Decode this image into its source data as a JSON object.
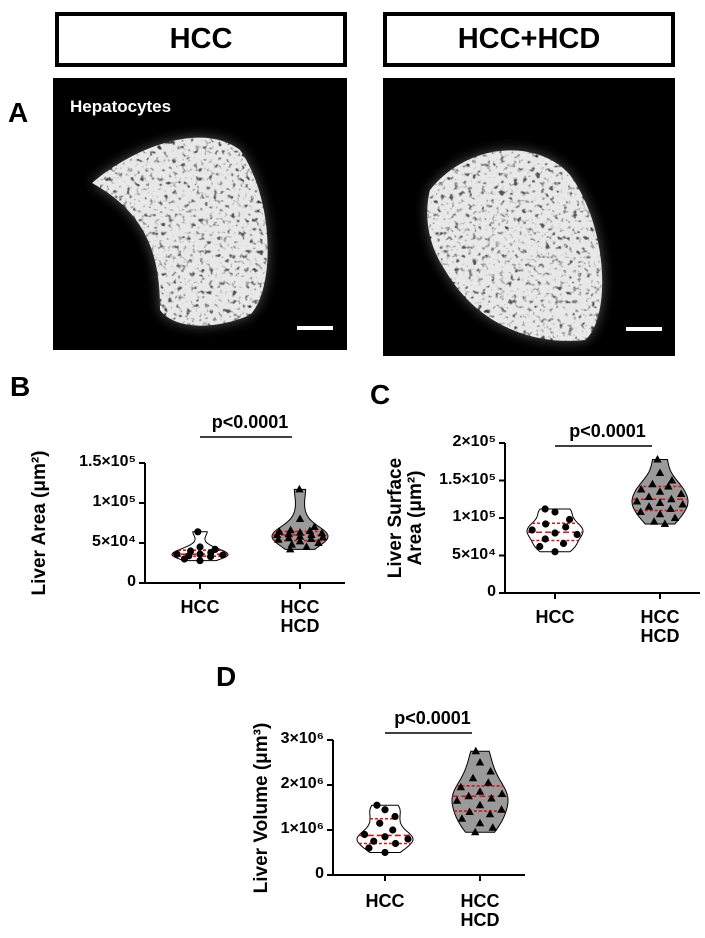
{
  "panel_a": {
    "label": "A",
    "headers": [
      "HCC",
      "HCC+HCD"
    ],
    "image_label": "Hepatocytes"
  },
  "chart_data": [
    {
      "panel": "B",
      "type": "violin",
      "ylabel": "Liver Area (μm²)",
      "annotation": "p<0.0001",
      "categories": [
        "HCC",
        "HCC\nHCD"
      ],
      "ylim": [
        0,
        150000
      ],
      "yticks": [
        0,
        {
          "value": 50000,
          "label": "5×10⁴"
        },
        {
          "value": 100000,
          "label": "1×10⁵"
        },
        {
          "value": 150000,
          "label": "1.5×10⁵"
        }
      ],
      "series": [
        {
          "color": "#ffffff",
          "marker": "circle",
          "values": [
            64000,
            45000,
            42000,
            40000,
            38000,
            36000,
            36000,
            35000,
            34000,
            33000,
            30000,
            28000
          ],
          "quartiles": [
            33500,
            36000,
            41000
          ]
        },
        {
          "color": "#9a9a9a",
          "marker": "triangle",
          "values": [
            117000,
            80000,
            70000,
            66000,
            65000,
            64000,
            63000,
            62000,
            61000,
            60000,
            60000,
            58000,
            57000,
            56000,
            55000,
            54000,
            52000,
            50000,
            48000,
            45000,
            42000
          ],
          "quartiles": [
            53000,
            60000,
            64500
          ]
        }
      ]
    },
    {
      "panel": "C",
      "type": "violin",
      "ylabel": "Liver Surface\nArea (μm²)",
      "annotation": "p<0.0001",
      "categories": [
        "HCC",
        "HCC\nHCD"
      ],
      "ylim": [
        0,
        200000
      ],
      "yticks": [
        0,
        {
          "value": 50000,
          "label": "5×10⁴"
        },
        {
          "value": 100000,
          "label": "1×10⁵"
        },
        {
          "value": 150000,
          "label": "1.5×10⁵"
        },
        {
          "value": 200000,
          "label": "2×10⁵"
        }
      ],
      "series": [
        {
          "color": "#ffffff",
          "marker": "circle",
          "values": [
            112000,
            108000,
            98000,
            92000,
            88000,
            84000,
            80000,
            78000,
            72000,
            66000,
            62000,
            55000
          ],
          "quartiles": [
            70000,
            81000,
            93000
          ]
        },
        {
          "color": "#9a9a9a",
          "marker": "triangle",
          "values": [
            178000,
            160000,
            150000,
            145000,
            142000,
            138000,
            135000,
            132000,
            128000,
            125000,
            122000,
            120000,
            118000,
            115000,
            112000,
            108000,
            105000,
            100000,
            95000,
            92000
          ],
          "quartiles": [
            110000,
            125000,
            142000
          ]
        }
      ]
    },
    {
      "panel": "D",
      "type": "violin",
      "ylabel": "Liver Volume (μm³)",
      "annotation": "p<0.0001",
      "categories": [
        "HCC",
        "HCC\nHCD"
      ],
      "ylim": [
        0,
        3000000
      ],
      "yticks": [
        0,
        {
          "value": 1000000,
          "label": "1×10⁶"
        },
        {
          "value": 2000000,
          "label": "2×10⁶"
        },
        {
          "value": 3000000,
          "label": "3×10⁶"
        }
      ],
      "series": [
        {
          "color": "#ffffff",
          "marker": "circle",
          "values": [
            1550000,
            1450000,
            1300000,
            1150000,
            1000000,
            900000,
            850000,
            800000,
            750000,
            700000,
            600000,
            500000
          ],
          "quartiles": [
            700000,
            880000,
            1250000
          ]
        },
        {
          "color": "#9a9a9a",
          "marker": "triangle",
          "values": [
            2750000,
            2500000,
            2300000,
            2150000,
            2050000,
            1950000,
            1850000,
            1800000,
            1750000,
            1700000,
            1650000,
            1550000,
            1450000,
            1400000,
            1350000,
            1250000,
            1150000,
            1050000,
            950000
          ],
          "quartiles": [
            1420000,
            1750000,
            1980000
          ]
        }
      ]
    }
  ]
}
